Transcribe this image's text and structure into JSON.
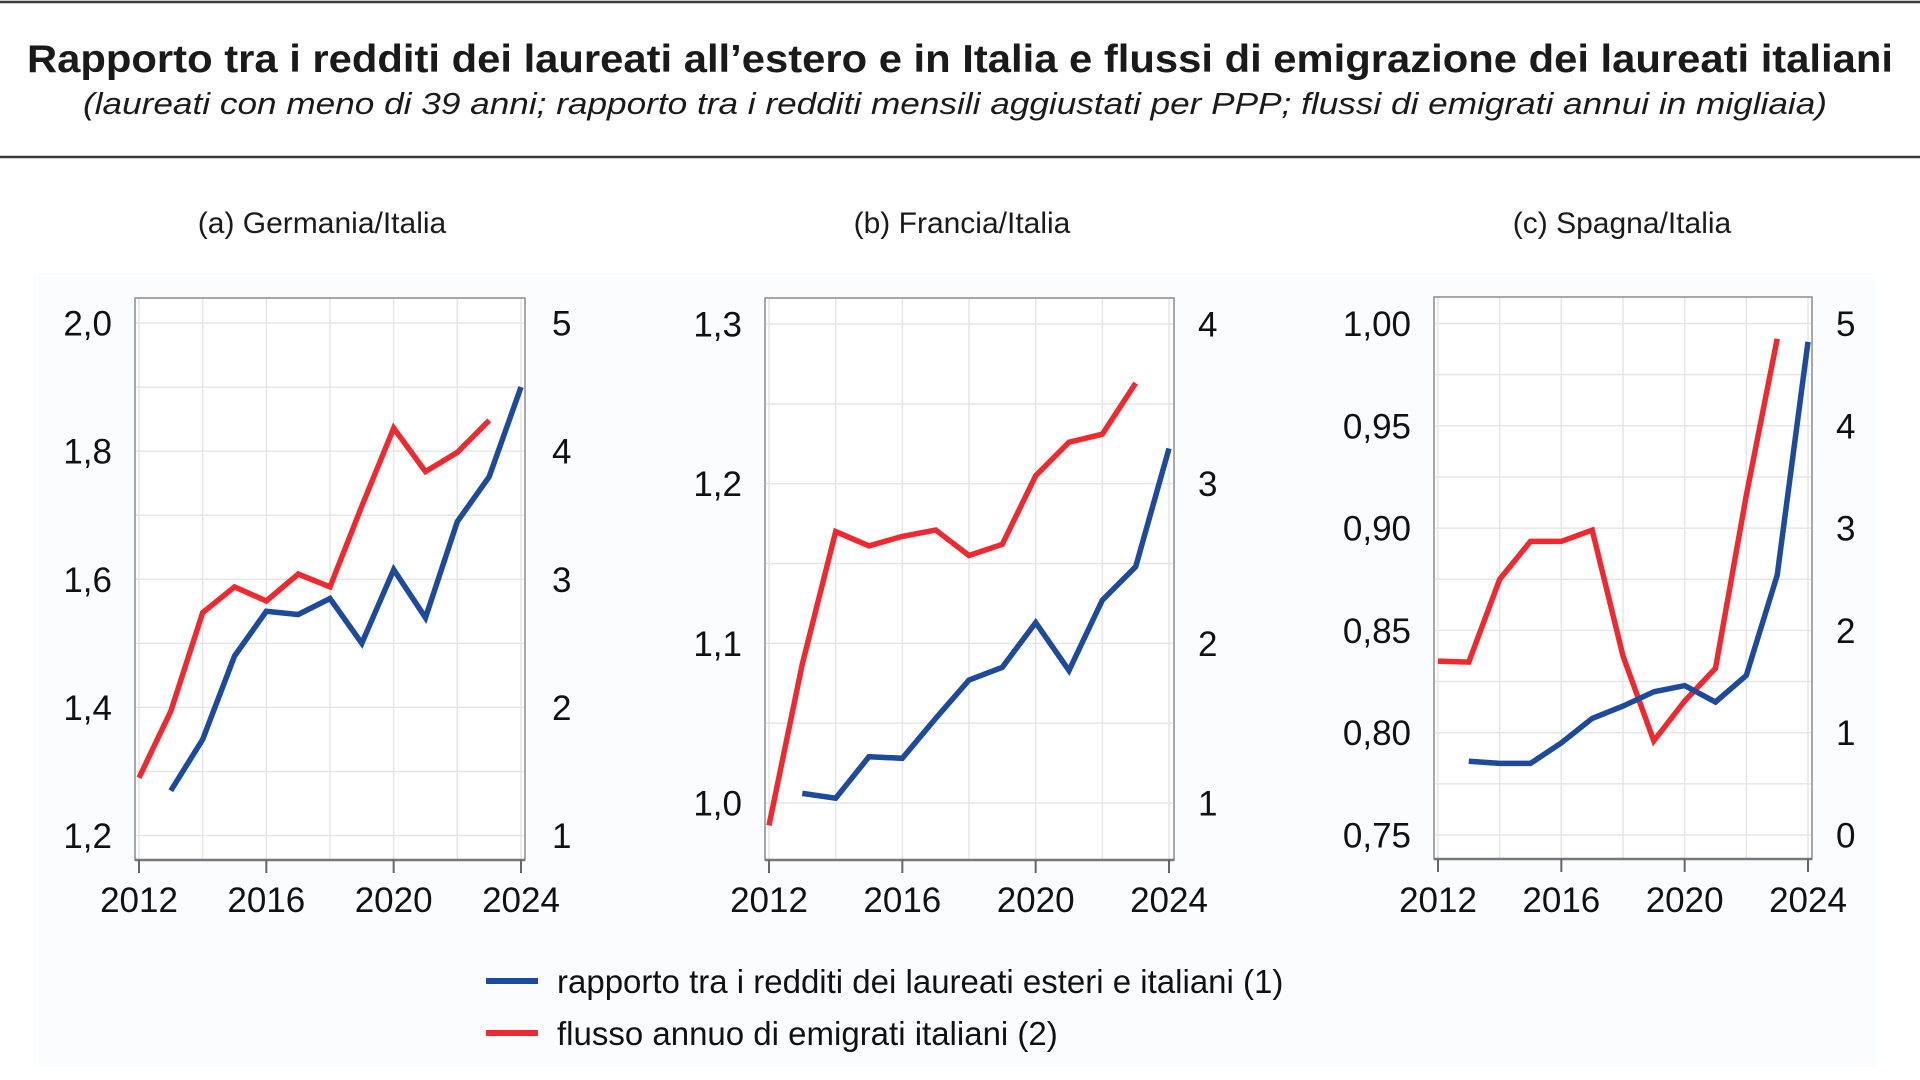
{
  "header": {
    "title": "Rapporto tra i redditi dei laureati all’estero e in Italia e flussi di emigrazione dei laureati italiani",
    "subtitle": "(laureati con meno di 39 anni; rapporto tra i redditi mensili aggiustati per PPP; flussi di emigrati annui in migliaia)"
  },
  "colors": {
    "ratio_series": "#1d4a9a",
    "flow_series": "#ee2a30",
    "grid": "#e6e6e6",
    "frame": "#8c8c8c",
    "background_panel": "#fbfcfe"
  },
  "legend": {
    "position": "bottom-center",
    "items": [
      {
        "label": "rapporto tra i redditi dei laureati esteri e italiani (1)",
        "series": "ratio"
      },
      {
        "label": "flusso annuo di emigrati italiani (2)",
        "series": "flow"
      }
    ]
  },
  "chart_data": [
    {
      "type": "line",
      "title": "(a) Germania/Italia",
      "xlabel": "",
      "ylabel": "",
      "y2label": "",
      "x": [
        2012,
        2013,
        2014,
        2015,
        2016,
        2017,
        2018,
        2019,
        2020,
        2021,
        2022,
        2023,
        2024
      ],
      "xlim": [
        2012,
        2024
      ],
      "xticks": [
        2012,
        2016,
        2020,
        2024
      ],
      "xtick_labels": [
        "2012",
        "2016",
        "2020",
        "2024"
      ],
      "ylim": [
        1.2,
        2.0
      ],
      "yticks": [
        1.2,
        1.4,
        1.6,
        1.8,
        2.0
      ],
      "ytick_labels": [
        "1,2",
        "1,4",
        "1,6",
        "1,8",
        "2,0"
      ],
      "ygrid_step": 0.1,
      "y2lim": [
        1,
        5
      ],
      "y2ticks": [
        1,
        2,
        3,
        4,
        5
      ],
      "y2tick_labels": [
        "1",
        "2",
        "3",
        "4",
        "5"
      ],
      "grid": true,
      "series": [
        {
          "name": "rapporto tra i redditi dei laureati esteri e italiani (1)",
          "key": "ratio",
          "axis": "left",
          "values": [
            null,
            1.27,
            1.35,
            1.48,
            1.55,
            1.545,
            1.57,
            1.5,
            1.615,
            1.54,
            1.69,
            1.76,
            1.9
          ]
        },
        {
          "name": "flusso annuo di emigrati italiani (2)",
          "key": "flow",
          "axis": "right",
          "values": [
            1.45,
            1.97,
            2.74,
            2.94,
            2.83,
            3.04,
            2.94,
            3.57,
            4.18,
            3.84,
            3.99,
            4.24,
            null
          ]
        }
      ]
    },
    {
      "type": "line",
      "title": "(b) Francia/Italia",
      "xlabel": "",
      "ylabel": "",
      "y2label": "",
      "x": [
        2012,
        2013,
        2014,
        2015,
        2016,
        2017,
        2018,
        2019,
        2020,
        2021,
        2022,
        2023,
        2024
      ],
      "xlim": [
        2012,
        2024
      ],
      "xticks": [
        2012,
        2016,
        2020,
        2024
      ],
      "xtick_labels": [
        "2012",
        "2016",
        "2020",
        "2024"
      ],
      "ylim": [
        0.9625,
        1.3
      ],
      "yticks": [
        1.0,
        1.1,
        1.2,
        1.3
      ],
      "ytick_labels": [
        "1,0",
        "1,1",
        "1,2",
        "1,3"
      ],
      "ygrid_step": 0.05,
      "y2lim": [
        0.625,
        4
      ],
      "y2ticks": [
        1,
        2,
        3,
        4
      ],
      "y2tick_labels": [
        "1",
        "2",
        "3",
        "4"
      ],
      "grid": true,
      "series": [
        {
          "name": "rapporto tra i redditi dei laureati esteri e italiani (1)",
          "key": "ratio",
          "axis": "left",
          "values": [
            null,
            1.006,
            1.003,
            1.029,
            1.028,
            1.053,
            1.077,
            1.085,
            1.113,
            1.083,
            1.127,
            1.148,
            1.222
          ]
        },
        {
          "name": "flusso annuo di emigrati italiani (2)",
          "key": "flow",
          "axis": "right",
          "values": [
            0.86,
            1.87,
            2.7,
            2.61,
            2.67,
            2.71,
            2.55,
            2.62,
            3.05,
            3.26,
            3.31,
            3.63,
            null
          ]
        }
      ]
    },
    {
      "type": "line",
      "title": "(c) Spagna/Italia",
      "xlabel": "",
      "ylabel": "",
      "y2label": "",
      "x": [
        2012,
        2013,
        2014,
        2015,
        2016,
        2017,
        2018,
        2019,
        2020,
        2021,
        2022,
        2023,
        2024
      ],
      "xlim": [
        2012,
        2024
      ],
      "xticks": [
        2012,
        2016,
        2020,
        2024
      ],
      "xtick_labels": [
        "2012",
        "2016",
        "2020",
        "2024"
      ],
      "ylim": [
        0.75,
        1.0
      ],
      "yticks": [
        0.75,
        0.8,
        0.85,
        0.9,
        0.95,
        1.0
      ],
      "ytick_labels": [
        "0,75",
        "0,80",
        "0,85",
        "0,90",
        "0,95",
        "1,00"
      ],
      "ygrid_step": 0.025,
      "y2lim": [
        0,
        5
      ],
      "y2ticks": [
        0,
        1,
        2,
        3,
        4,
        5
      ],
      "y2tick_labels": [
        "0",
        "1",
        "2",
        "3",
        "4",
        "5"
      ],
      "grid": true,
      "series": [
        {
          "name": "rapporto tra i redditi dei laureati esteri e italiani (1)",
          "key": "ratio",
          "axis": "left",
          "values": [
            null,
            0.786,
            0.785,
            0.785,
            0.795,
            0.807,
            0.813,
            0.82,
            0.823,
            0.815,
            0.828,
            0.877,
            0.991
          ]
        },
        {
          "name": "flusso annuo di emigrati italiani (2)",
          "key": "flow",
          "axis": "right",
          "values": [
            1.7,
            1.69,
            2.5,
            2.87,
            2.87,
            2.98,
            1.75,
            0.92,
            1.31,
            1.63,
            3.32,
            4.85,
            null
          ]
        }
      ]
    }
  ]
}
